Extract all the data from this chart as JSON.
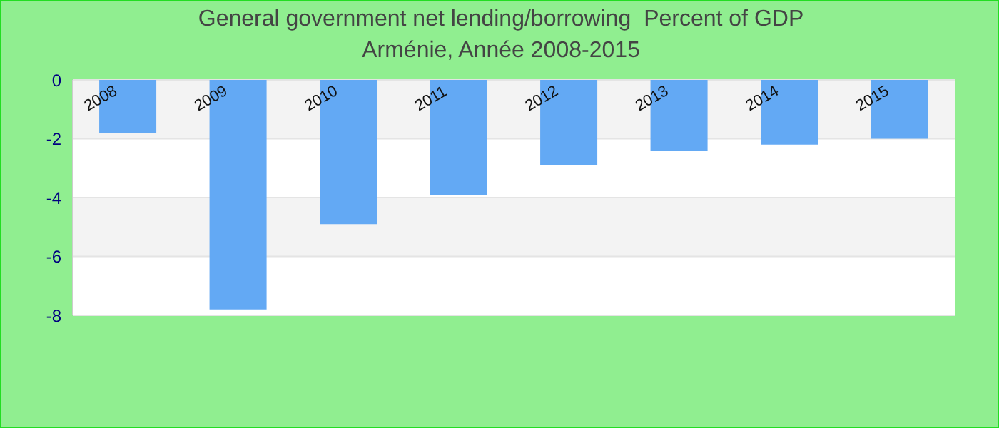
{
  "chart_data": {
    "type": "bar",
    "title": "General government net lending/borrowing  Percent of GDP",
    "subtitle": "Arménie, Année 2008-2015",
    "categories": [
      "2008",
      "2009",
      "2010",
      "2011",
      "2012",
      "2013",
      "2014",
      "2015"
    ],
    "values": [
      -1.8,
      -7.8,
      -4.9,
      -3.9,
      -2.9,
      -2.4,
      -2.2,
      -2.0
    ],
    "color": "#63a9f4",
    "ylim": [
      -8,
      0
    ],
    "yticks": [
      -8,
      -6,
      -4,
      -2,
      0
    ],
    "grid": "y"
  }
}
